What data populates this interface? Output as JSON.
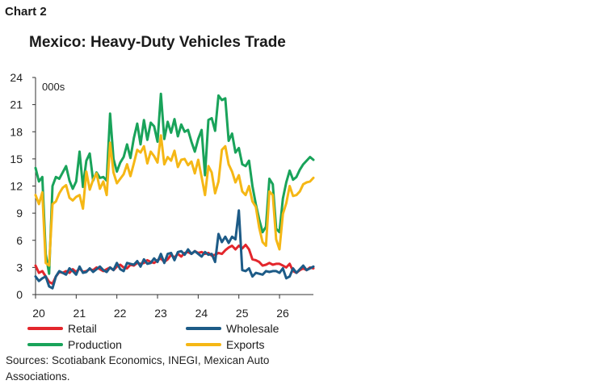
{
  "chart_label": "Chart 2",
  "title": "Mexico: Heavy-Duty Vehicles Trade",
  "source": "Sources: Scotiabank Economics, INEGI, Mexican Auto Associations.",
  "chart_data": {
    "type": "line",
    "title": "Mexico: Heavy-Duty Vehicles Trade",
    "unit_label": "000s",
    "ylim": [
      0,
      24
    ],
    "yticks": [
      "0",
      "3",
      "6",
      "9",
      "12",
      "15",
      "18",
      "21",
      "24"
    ],
    "xticks": [
      "20",
      "21",
      "22",
      "23",
      "24",
      "25",
      "26"
    ],
    "grid": false,
    "legend_position": "bottom",
    "series": [
      {
        "name": "Retail",
        "color": "#e3262c",
        "values": [
          3.2,
          2.4,
          2.6,
          2.0,
          1.4,
          1.2,
          2.0,
          2.5,
          2.4,
          2.6,
          2.4,
          2.8,
          2.5,
          2.9,
          2.5,
          2.6,
          2.8,
          2.7,
          3.0,
          2.8,
          2.6,
          2.8,
          3.0,
          2.7,
          3.1,
          3.3,
          3.0,
          2.9,
          3.3,
          3.2,
          3.5,
          3.4,
          3.5,
          3.8,
          3.6,
          3.5,
          3.8,
          4.0,
          3.6,
          3.9,
          4.4,
          4.1,
          4.5,
          4.2,
          4.6,
          4.7,
          4.5,
          4.8,
          4.6,
          4.7,
          4.5,
          4.6,
          4.3,
          4.4,
          4.6,
          4.5,
          4.9,
          5.2,
          5.4,
          5.0,
          5.4,
          5.1,
          5.5,
          5.0,
          3.9,
          3.8,
          3.6,
          3.2,
          3.3,
          3.5,
          3.3,
          3.4,
          3.4,
          3.2,
          3.0,
          3.4,
          2.6,
          2.4,
          2.7,
          2.9,
          2.7,
          3.0,
          2.9
        ]
      },
      {
        "name": "Wholesale",
        "color": "#1d5b87",
        "values": [
          2.0,
          1.5,
          1.8,
          2.0,
          0.9,
          0.7,
          2.0,
          2.6,
          2.4,
          2.2,
          2.9,
          2.6,
          2.2,
          3.1,
          2.4,
          2.5,
          2.9,
          2.5,
          2.8,
          3.1,
          2.7,
          2.5,
          3.0,
          2.7,
          3.5,
          2.8,
          2.6,
          3.5,
          3.4,
          3.3,
          3.7,
          3.1,
          3.9,
          3.4,
          3.5,
          4.0,
          3.6,
          4.5,
          3.5,
          4.5,
          4.6,
          3.8,
          4.7,
          4.8,
          4.4,
          5.0,
          4.5,
          4.8,
          4.5,
          4.2,
          4.7,
          4.4,
          4.5,
          3.6,
          6.7,
          5.8,
          6.4,
          5.7,
          6.4,
          6.1,
          9.3,
          2.7,
          2.6,
          2.9,
          2.0,
          2.4,
          2.3,
          2.2,
          2.6,
          2.5,
          2.6,
          2.6,
          2.4,
          2.9,
          1.8,
          2.0,
          2.9,
          2.4,
          2.8,
          3.2,
          2.7,
          2.9,
          3.1
        ]
      },
      {
        "name": "Production",
        "color": "#19a35a",
        "values": [
          14.0,
          12.5,
          13.0,
          4.5,
          2.3,
          12.0,
          13.0,
          12.8,
          13.5,
          14.2,
          12.6,
          11.7,
          12.5,
          15.8,
          11.9,
          14.8,
          15.6,
          12.6,
          13.5,
          12.9,
          13.0,
          12.6,
          20.0,
          15.0,
          13.6,
          14.6,
          15.2,
          16.6,
          15.1,
          17.3,
          18.9,
          16.6,
          19.3,
          17.1,
          19.0,
          18.6,
          16.9,
          22.2,
          17.2,
          19.1,
          17.9,
          19.4,
          17.5,
          18.8,
          18.0,
          18.2,
          16.9,
          15.8,
          17.2,
          18.2,
          13.2,
          19.3,
          19.5,
          18.1,
          22.0,
          21.5,
          21.7,
          17.0,
          17.8,
          15.7,
          16.2,
          14.4,
          14.2,
          14.8,
          12.0,
          10.0,
          8.3,
          6.9,
          7.5,
          12.8,
          12.2,
          7.3,
          6.9,
          10.6,
          12.4,
          13.7,
          12.7,
          13.0,
          13.8,
          14.4,
          14.8,
          15.2,
          14.9
        ]
      },
      {
        "name": "Exports",
        "color": "#f5b715",
        "values": [
          11.0,
          10.0,
          11.3,
          3.5,
          3.2,
          10.0,
          10.3,
          11.2,
          11.8,
          12.1,
          10.7,
          10.4,
          10.8,
          11.0,
          9.5,
          13.6,
          11.6,
          12.7,
          13.4,
          11.7,
          12.5,
          11.0,
          16.8,
          13.5,
          12.3,
          12.8,
          13.3,
          14.4,
          13.1,
          14.5,
          16.0,
          15.7,
          16.4,
          14.5,
          15.8,
          15.3,
          14.6,
          17.6,
          14.4,
          15.2,
          14.8,
          15.9,
          14.1,
          14.9,
          15.0,
          14.3,
          14.7,
          13.4,
          14.9,
          13.0,
          11.0,
          14.2,
          13.5,
          11.2,
          12.5,
          16.0,
          16.4,
          14.4,
          13.6,
          12.4,
          13.2,
          11.4,
          11.0,
          12.0,
          10.3,
          9.7,
          7.4,
          5.8,
          5.4,
          11.4,
          11.0,
          6.1,
          5.0,
          8.9,
          10.1,
          12.0,
          10.9,
          11.0,
          11.4,
          12.2,
          12.4,
          12.5,
          12.9
        ]
      }
    ]
  }
}
